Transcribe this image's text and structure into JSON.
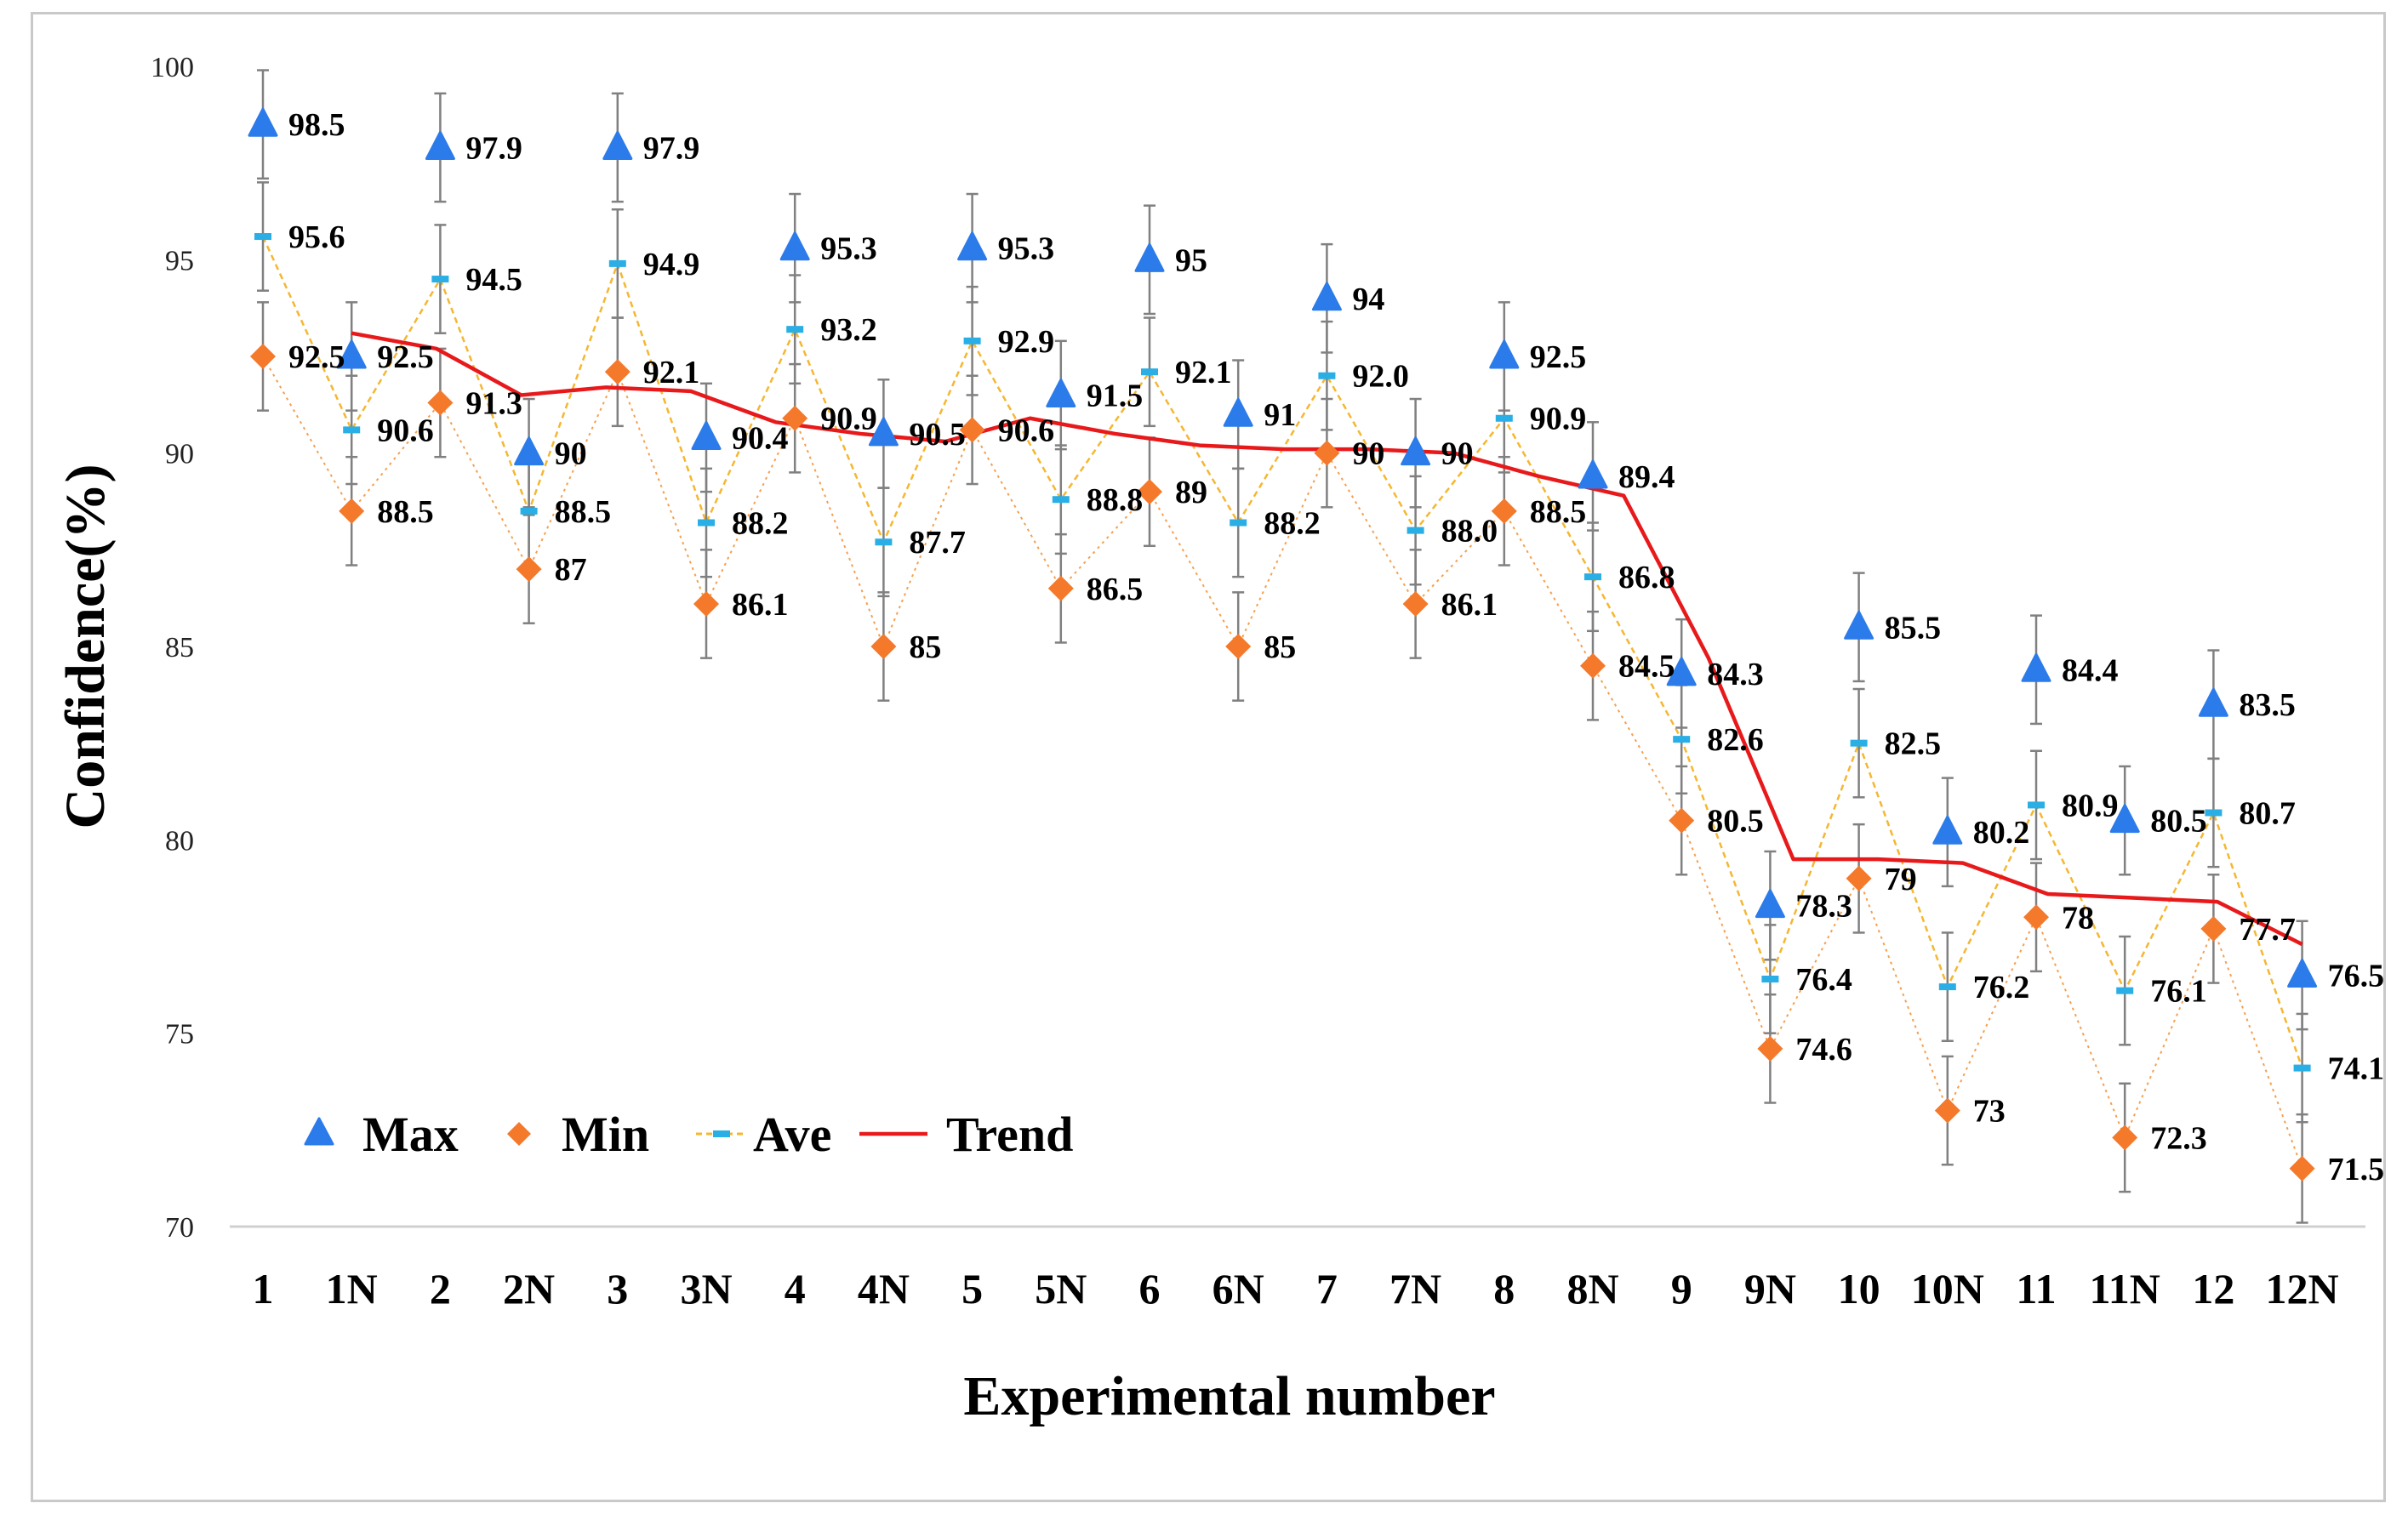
{
  "chart_data": {
    "type": "line",
    "title": "",
    "xlabel": "Experimental number",
    "ylabel": "Confidence(%)",
    "ylim": [
      70,
      100
    ],
    "yticks": [
      "70",
      "75",
      "80",
      "85",
      "90",
      "95",
      "100"
    ],
    "grid": false,
    "legend_position": "bottom-left",
    "categories": [
      "1",
      "1N",
      "2",
      "2N",
      "3",
      "3N",
      "4",
      "4N",
      "5",
      "5N",
      "6",
      "6N",
      "7",
      "7N",
      "8",
      "8N",
      "9",
      "9N",
      "10",
      "10N",
      "11",
      "11N",
      "12",
      "12N"
    ],
    "series": [
      {
        "name": "Max",
        "marker": "triangle",
        "color": "#2b7bea",
        "values": [
          98.5,
          92.5,
          97.9,
          90,
          97.9,
          90.4,
          95.3,
          90.5,
          95.3,
          91.5,
          95,
          91,
          94,
          90,
          92.5,
          89.4,
          84.3,
          78.3,
          85.5,
          80.2,
          84.4,
          80.5,
          83.5,
          76.5
        ],
        "labels": [
          "98.5",
          "92.5",
          "97.9",
          "90",
          "97.9",
          "90.4",
          "95.3",
          "90.5",
          "95.3",
          "91.5",
          "95",
          "91",
          "94",
          "90",
          "92.5",
          "89.4",
          "84.3",
          "78.3",
          "85.5",
          "80.2",
          "84.4",
          "80.5",
          "83.5",
          "76.5"
        ]
      },
      {
        "name": "Min",
        "marker": "diamond",
        "color": "#f4792b",
        "values": [
          92.5,
          88.5,
          91.3,
          87,
          92.1,
          86.1,
          90.9,
          85,
          90.6,
          86.5,
          89,
          85,
          90,
          86.1,
          88.5,
          84.5,
          80.5,
          74.6,
          79,
          73,
          78,
          72.3,
          77.7,
          71.5
        ],
        "labels": [
          "92.5",
          "88.5",
          "91.3",
          "87",
          "92.1",
          "86.1",
          "90.9",
          "85",
          "90.6",
          "86.5",
          "89",
          "85",
          "90",
          "86.1",
          "88.5",
          "84.5",
          "80.5",
          "74.6",
          "79",
          "73",
          "78",
          "72.3",
          "77.7",
          "71.5"
        ]
      },
      {
        "name": "Ave",
        "marker": "dash",
        "color": "#f5b731",
        "marker_color": "#29aee6",
        "values": [
          95.6,
          90.6,
          94.5,
          88.5,
          94.9,
          88.2,
          93.2,
          87.7,
          92.9,
          88.8,
          92.1,
          88.2,
          92.0,
          88.0,
          90.9,
          86.8,
          82.6,
          76.4,
          82.5,
          76.2,
          80.9,
          76.1,
          80.7,
          74.1
        ],
        "labels": [
          "95.6",
          "90.6",
          "94.5",
          "88.5",
          "94.9",
          "88.2",
          "93.2",
          "87.7",
          "92.9",
          "88.8",
          "92.1",
          "88.2",
          "92.0",
          "88.0",
          "90.9",
          "86.8",
          "82.6",
          "76.4",
          "82.5",
          "76.2",
          "80.9",
          "76.1",
          "80.7",
          "74.1"
        ]
      },
      {
        "name": "Trend",
        "color": "#e8191b",
        "x_start_index": 1,
        "values": [
          93.1,
          92.7,
          91.5,
          91.7,
          91.6,
          90.8,
          90.5,
          90.3,
          90.9,
          90.5,
          90.2,
          90.1,
          90.1,
          90.0,
          89.4,
          88.9,
          84.7,
          79.5,
          79.5,
          79.4,
          78.6,
          78.5,
          78.4,
          77.3
        ]
      }
    ],
    "error_bar": 1.4
  }
}
